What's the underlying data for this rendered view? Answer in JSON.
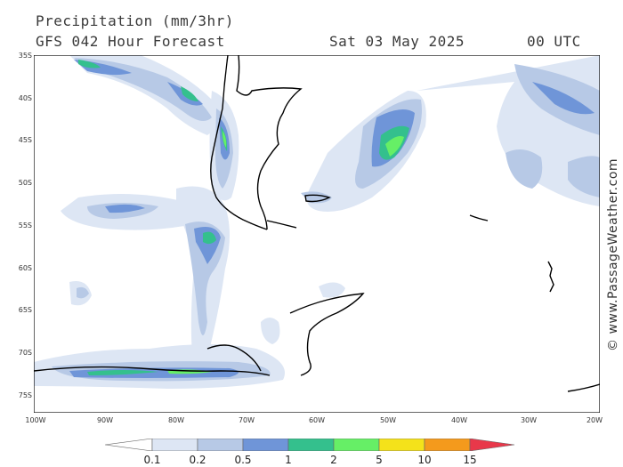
{
  "header": {
    "title": "Precipitation (mm/3hr)",
    "subtitle": "GFS 042 Hour Forecast",
    "date": "Sat 03 May 2025",
    "time": "00 UTC"
  },
  "credit": "© www.PassageWeather.com",
  "axes": {
    "lat_labels": [
      "35S",
      "40S",
      "45S",
      "50S",
      "55S",
      "60S",
      "65S",
      "70S",
      "75S"
    ],
    "lon_labels": [
      "100W",
      "90W",
      "80W",
      "70W",
      "60W",
      "50W",
      "40W",
      "30W",
      "20W"
    ]
  },
  "legend": {
    "thresholds": [
      "0.1",
      "0.2",
      "0.5",
      "1",
      "2",
      "5",
      "10",
      "15"
    ],
    "colors": [
      "#ffffff",
      "#dde6f4",
      "#b7c9e6",
      "#6f95d8",
      "#34c08d",
      "#66ef66",
      "#f4e21a",
      "#f49a1c",
      "#e8384a"
    ]
  }
}
